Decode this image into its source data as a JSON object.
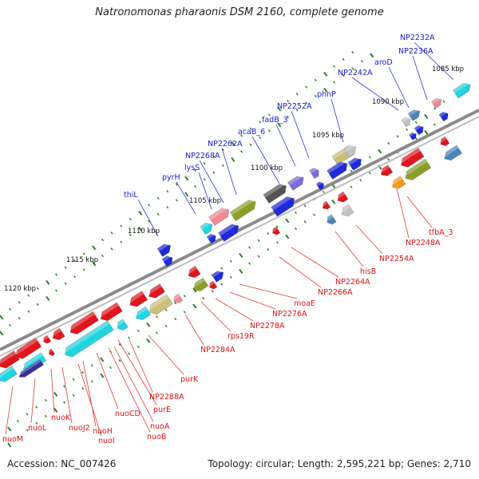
{
  "title": "Natronomonas pharaonis DSM 2160, complete genome",
  "footer": {
    "accession": "Accession: NC_007426",
    "summary": "Topology: circular; Length: 2,595,221 bp; Genes: 2,710"
  },
  "colors": {
    "label_forward": "#1a1acc",
    "label_reverse": "#dd1111",
    "backbone": "#8a8a8a",
    "tick": "#2e7d2e"
  },
  "scale_labels": [
    "1085 kbp",
    "1090 kbp",
    "1095 kbp",
    "1100 kbp",
    "1105 kbp",
    "1110 kbp",
    "1115 kbp",
    "1120 kbp"
  ],
  "forward_genes": [
    "NP2232A",
    "NP2236A",
    "aroD",
    "NP2242A",
    "phnP",
    "NP2252A",
    "fadB_3",
    "acaB_6",
    "NP2262A",
    "NP2268A",
    "lysS",
    "pyrH",
    "thiL"
  ],
  "reverse_genes": [
    "tfbA_3",
    "NP2248A",
    "NP2254A",
    "hisB",
    "NP2264A",
    "NP2266A",
    "moaE",
    "NP2276A",
    "NP2278A",
    "rps19R",
    "NP2284A",
    "purK",
    "NP2288A",
    "purE",
    "nuoA",
    "nuoB",
    "nuoCD",
    "nuoH",
    "nuoI",
    "nuoJ2",
    "nuoK",
    "nuoL",
    "nuoM"
  ]
}
